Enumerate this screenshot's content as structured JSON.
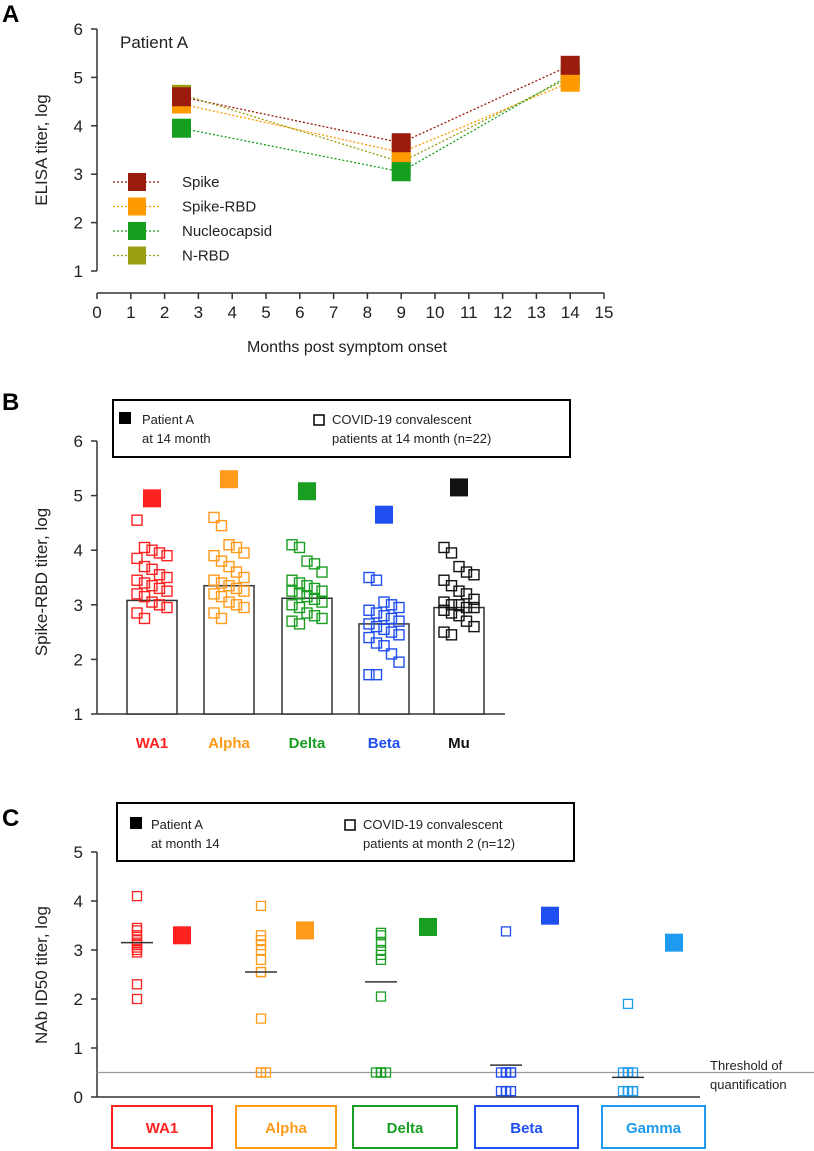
{
  "chart_data": [
    {
      "panel": "A",
      "type": "line",
      "annotation": "Patient A",
      "xlabel": "Months post symptom onset",
      "ylabel": "ELISA  titer, log",
      "xlim": [
        0,
        15
      ],
      "ylim": [
        1,
        6
      ],
      "xticks": [
        "0",
        "1",
        "2",
        "3",
        "4",
        "5",
        "6",
        "7",
        "8",
        "9",
        "10",
        "11",
        "12",
        "13",
        "14",
        "15"
      ],
      "yticks": [
        "1",
        "2",
        "3",
        "4",
        "5",
        "6"
      ],
      "x": [
        2.5,
        9,
        14
      ],
      "series": [
        {
          "name": "Spike",
          "color": "#9b1b0d",
          "values": [
            4.6,
            3.65,
            5.25
          ]
        },
        {
          "name": "Spike-RBD",
          "color": "#ff9a00",
          "values": [
            4.45,
            3.45,
            4.9
          ]
        },
        {
          "name": "Nucleocapsid",
          "color": "#14a01e",
          "values": [
            3.95,
            3.05,
            5.05
          ]
        },
        {
          "name": "N-RBD",
          "color": "#9a9f12",
          "values": [
            4.65,
            3.25,
            5.0
          ]
        }
      ]
    },
    {
      "panel": "B",
      "type": "bar",
      "ylabel": "Spike-RBD  titer, log",
      "ylim": [
        1,
        6
      ],
      "yticks": [
        "1",
        "2",
        "3",
        "4",
        "5",
        "6"
      ],
      "legend": {
        "filled_line1": "Patient A",
        "filled_line2": "at 14 month",
        "open_line1": "COVID-19 convalescent",
        "open_line2": "patients at 14 month (n=22)"
      },
      "categories": [
        "WA1",
        "Alpha",
        "Delta",
        "Beta",
        "Mu"
      ],
      "colors": [
        "#ff2020",
        "#ff9a1a",
        "#1a9e22",
        "#1f4ff0",
        "#111111"
      ],
      "bar_values": [
        3.08,
        3.35,
        3.12,
        2.65,
        2.95
      ],
      "patient_a": [
        4.95,
        5.3,
        5.08,
        4.65,
        5.15
      ],
      "convalescent": [
        [
          4.55,
          4.05,
          4.0,
          3.95,
          3.9,
          3.85,
          3.7,
          3.65,
          3.55,
          3.5,
          3.45,
          3.4,
          3.35,
          3.3,
          3.25,
          3.2,
          3.15,
          3.05,
          3.0,
          2.95,
          2.85,
          2.75
        ],
        [
          4.6,
          4.45,
          4.1,
          4.05,
          3.95,
          3.9,
          3.8,
          3.7,
          3.6,
          3.5,
          3.45,
          3.4,
          3.35,
          3.3,
          3.25,
          3.2,
          3.15,
          3.05,
          3.0,
          2.95,
          2.85,
          2.75
        ],
        [
          4.1,
          4.05,
          3.8,
          3.75,
          3.6,
          3.45,
          3.4,
          3.35,
          3.3,
          3.25,
          3.25,
          3.2,
          3.15,
          3.1,
          3.05,
          3.0,
          2.95,
          2.85,
          2.8,
          2.75,
          2.7,
          2.65
        ],
        [
          3.5,
          3.45,
          3.05,
          3.0,
          2.95,
          2.9,
          2.85,
          2.8,
          2.75,
          2.7,
          2.65,
          2.6,
          2.55,
          2.5,
          2.45,
          2.4,
          2.3,
          2.25,
          2.1,
          1.95,
          1.72,
          1.72
        ],
        [
          4.05,
          3.95,
          3.7,
          3.6,
          3.55,
          3.45,
          3.35,
          3.25,
          3.2,
          3.1,
          3.05,
          3.0,
          3.0,
          2.95,
          2.95,
          2.9,
          2.85,
          2.8,
          2.7,
          2.6,
          2.5,
          2.45
        ]
      ]
    },
    {
      "panel": "C",
      "type": "scatter",
      "ylabel": "NAb  ID50 titer, log",
      "ylim": [
        0,
        5
      ],
      "yticks": [
        "0",
        "1",
        "2",
        "3",
        "4",
        "5"
      ],
      "legend": {
        "filled_line1": "Patient A",
        "filled_line2": "at month 14",
        "open_line1": "COVID-19 convalescent",
        "open_line2": "patients at month 2 (n=12)"
      },
      "threshold": 0.5,
      "threshold_label_line1": "Threshold of",
      "threshold_label_line2": "quantification",
      "categories": [
        "WA1",
        "Alpha",
        "Delta",
        "Beta",
        "Gamma"
      ],
      "colors": [
        "#ff2020",
        "#ff9a1a",
        "#1a9e22",
        "#1f4ff0",
        "#1e9bf0"
      ],
      "patient_a": [
        3.3,
        3.4,
        3.47,
        3.7,
        3.15
      ],
      "medians": [
        3.15,
        2.55,
        2.35,
        0.65,
        0.4
      ],
      "convalescent": [
        [
          4.1,
          3.45,
          3.4,
          3.3,
          3.2,
          3.15,
          3.1,
          3.05,
          3.0,
          2.95,
          2.3,
          2.0
        ],
        [
          3.9,
          3.3,
          3.2,
          3.1,
          3.0,
          2.8,
          2.55,
          2.55,
          1.6,
          0.5,
          0.5,
          0.5
        ],
        [
          3.35,
          3.3,
          3.15,
          3.0,
          2.9,
          2.8,
          2.05,
          0.5,
          0.5,
          0.5,
          0.5,
          0.5
        ],
        [
          3.38,
          0.5,
          0.5,
          0.5,
          0.5,
          0.5,
          0.5,
          0.12,
          0.12,
          0.12,
          0.12,
          0.12
        ],
        [
          1.9,
          0.5,
          0.5,
          0.5,
          0.5,
          0.5,
          0.12,
          0.12,
          0.12,
          0.12,
          0.12,
          0.12
        ]
      ]
    }
  ]
}
